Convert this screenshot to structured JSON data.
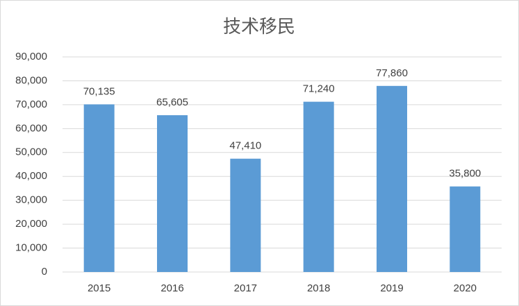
{
  "chart_data": {
    "type": "bar",
    "title": "技术移民",
    "categories": [
      "2015",
      "2016",
      "2017",
      "2018",
      "2019",
      "2020"
    ],
    "values": [
      70135,
      65605,
      47410,
      71240,
      77860,
      35800
    ],
    "value_labels": [
      "70,135",
      "65,605",
      "47,410",
      "71,240",
      "77,860",
      "35,800"
    ],
    "color": "#5b9bd5",
    "ylim": [
      0,
      90000
    ],
    "yticks": [
      0,
      {
        "value": 10000,
        "label": "10,000"
      },
      {
        "value": 20000,
        "label": "20,000"
      },
      {
        "value": 30000,
        "label": "30,000"
      },
      {
        "value": 40000,
        "label": "40,000"
      },
      {
        "value": 50000,
        "label": "50,000"
      },
      {
        "value": 60000,
        "label": "60,000"
      },
      {
        "value": 70000,
        "label": "70,000"
      },
      {
        "value": 80000,
        "label": "80,000"
      },
      {
        "value": 90000,
        "label": "90,000"
      }
    ],
    "grid": true
  }
}
